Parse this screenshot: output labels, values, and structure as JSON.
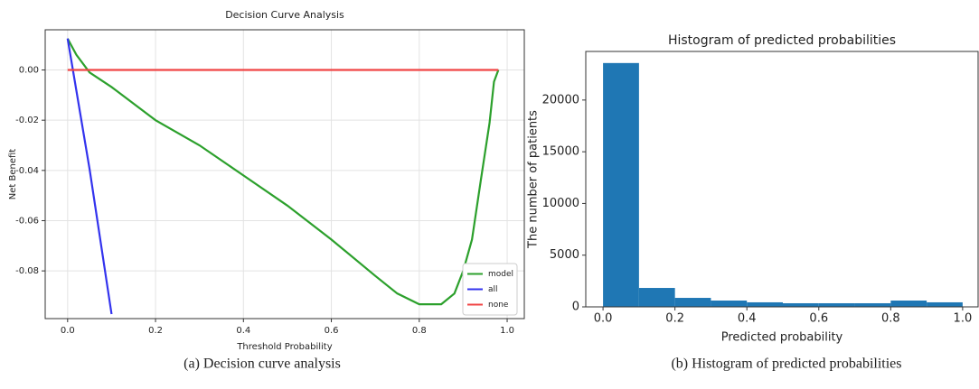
{
  "chart_data": [
    {
      "type": "line",
      "title": "Decision Curve Analysis",
      "xlabel": "Threshold Probability",
      "ylabel": "Net Benefit",
      "caption": "(a) Decision curve analysis",
      "series": [
        {
          "name": "model",
          "color": "#2ca02c",
          "x": [
            0,
            0.02,
            0.05,
            0.1,
            0.2,
            0.3,
            0.4,
            0.5,
            0.6,
            0.7,
            0.75,
            0.8,
            0.85,
            0.88,
            0.9,
            0.92,
            0.94,
            0.96,
            0.97,
            0.98
          ],
          "values": [
            0.0125,
            0.006,
            -0.001,
            -0.0068,
            -0.02,
            -0.03,
            -0.042,
            -0.054,
            -0.0675,
            -0.082,
            -0.089,
            -0.0933,
            -0.0933,
            -0.089,
            -0.08,
            -0.0675,
            -0.044,
            -0.021,
            -0.0047,
            0
          ]
        },
        {
          "name": "all",
          "color": "#3333ee",
          "x": [
            0,
            0.05,
            0.1
          ],
          "values": [
            0.0125,
            -0.0395,
            -0.0972
          ]
        },
        {
          "name": "none",
          "color": "#f04545",
          "x": [
            0,
            0.98
          ],
          "values": [
            0,
            0
          ]
        }
      ],
      "xlim": [
        -0.051,
        1.039
      ],
      "ylim": [
        -0.099,
        0.016
      ],
      "xticks": [
        {
          "value": 0,
          "label": "0.0"
        },
        0.2,
        0.4,
        0.6,
        0.8,
        {
          "value": 1,
          "label": "1.0"
        }
      ],
      "yticks": [
        {
          "value": 0,
          "label": "0.00"
        },
        -0.02,
        -0.04,
        -0.06,
        -0.08
      ],
      "grid": true,
      "legend": "lower right"
    },
    {
      "type": "histogram",
      "title": "Histogram of predicted probabilities",
      "xlabel": "Predicted probability",
      "ylabel": "The number of patients",
      "caption": "(b) Histogram of predicted probabilities",
      "bins": [
        0,
        0.1,
        0.2,
        0.3,
        0.4,
        0.5,
        0.6,
        0.7,
        0.8,
        0.9,
        1.0
      ],
      "values": [
        23580,
        1830,
        870,
        610,
        440,
        350,
        350,
        350,
        610,
        440
      ],
      "color": "#1f77b4",
      "xlim": [
        -0.048,
        1.043
      ],
      "ylim": [
        0,
        24700
      ],
      "xticks": [
        {
          "value": 0,
          "label": "0.0"
        },
        0.2,
        0.4,
        0.6,
        0.8,
        {
          "value": 1,
          "label": "1.0"
        }
      ],
      "yticks": [
        0,
        5000,
        10000,
        15000,
        20000
      ],
      "grid": false
    }
  ]
}
